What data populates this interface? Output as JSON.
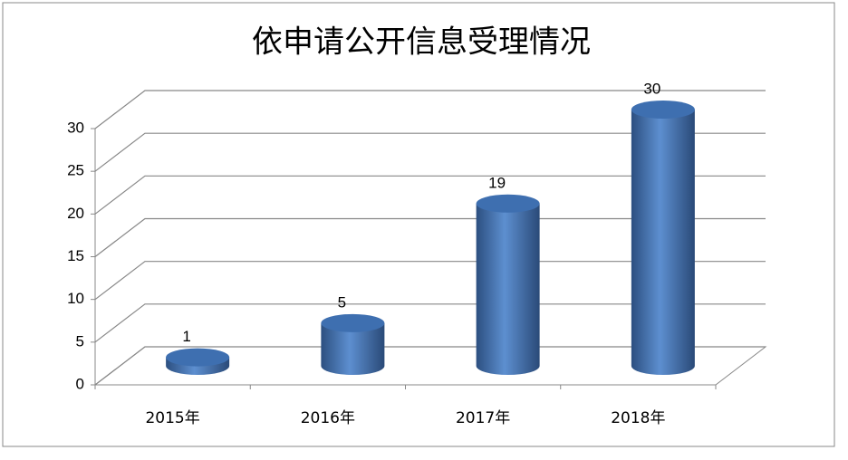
{
  "chart_data": {
    "type": "bar",
    "title": "依申请公开信息受理情况",
    "categories": [
      "2015年",
      "2016年",
      "2017年",
      "2018年"
    ],
    "values": [
      1,
      5,
      19,
      30
    ],
    "color": "#4f81bd",
    "ylim": [
      0,
      30
    ],
    "yticks": [
      0,
      5,
      10,
      15,
      20,
      25,
      30
    ],
    "grid": true
  }
}
